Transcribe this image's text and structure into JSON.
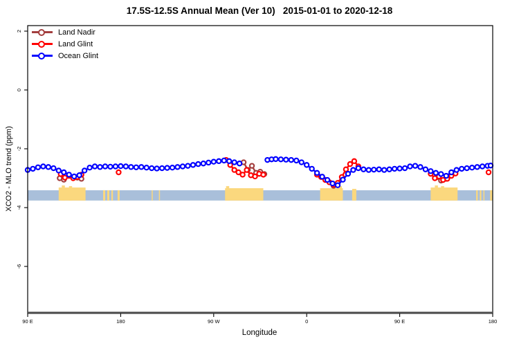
{
  "title": "17.5S-12.5S Annual Mean (Ver 10)   2015-01-01 to 2020-12-18",
  "colors": {
    "land_nadir": "#A33E3E",
    "land_glint": "#FF0000",
    "ocean_glint": "#0000FF",
    "ocean_band": "#A9BFDA",
    "land_band": "#FBD87E",
    "axis_heavy_line": "#4D4D4D",
    "frame": "#000000"
  },
  "legend": {
    "items": [
      {
        "label": "Land Nadir",
        "color_key": "land_nadir"
      },
      {
        "label": "Land Glint",
        "color_key": "land_glint"
      },
      {
        "label": "Ocean Glint",
        "color_key": "ocean_glint"
      }
    ]
  },
  "axes": {
    "xlabel": "Longitude",
    "ylabel": "XCO2 - MLO trend (ppm)",
    "x_ticks": [
      {
        "lon": 90,
        "label": "90 E"
      },
      {
        "lon": 180,
        "label": "180"
      },
      {
        "lon": 270,
        "label": "90 W"
      },
      {
        "lon": 360,
        "label": "0"
      },
      {
        "lon": 450,
        "label": "90 E"
      },
      {
        "lon": 540,
        "label": "180"
      }
    ],
    "y_ticks": [
      {
        "v": 2,
        "label": "2"
      },
      {
        "v": 0,
        "label": "0"
      },
      {
        "v": -2,
        "label": "-2"
      },
      {
        "v": -4,
        "label": "-4"
      },
      {
        "v": -6,
        "label": "-6"
      }
    ]
  },
  "chart_data": {
    "type": "line",
    "title": "17.5S-12.5S Annual Mean (Ver 10)   2015-01-01 to 2020-12-18",
    "xlabel": "Longitude",
    "ylabel": "XCO2 - MLO trend (ppm)",
    "x_axis_note": "extended longitude degrees, 90E wrapping east to 180 (90..540)",
    "xlim": [
      90,
      540
    ],
    "ylim": [
      -7.6,
      2.2
    ],
    "grid": false,
    "legend_position": "top-left-inside",
    "series": [
      {
        "name": "Land Nadir",
        "color_key": "land_nadir",
        "marker": "open-circle",
        "segments": [
          [
            [
              121,
              -3.0
            ],
            [
              125,
              -3.05
            ]
          ],
          [
            [
              138,
              -2.98
            ],
            [
              142,
              -3.02
            ]
          ],
          [
            [
              299,
              -2.46
            ],
            [
              303,
              -2.72
            ],
            [
              307,
              -2.58
            ],
            [
              311,
              -2.82
            ],
            [
              315,
              -2.78
            ],
            [
              319,
              -2.86
            ]
          ],
          [
            [
              386,
              -3.26
            ]
          ],
          [
            [
              485,
              -2.98
            ],
            [
              490,
              -3.08
            ],
            [
              495,
              -3.02
            ]
          ]
        ]
      },
      {
        "name": "Land Glint",
        "color_key": "land_glint",
        "marker": "open-circle",
        "segments": [
          [
            [
              122,
              -2.86
            ],
            [
              126,
              -2.98
            ],
            [
              130,
              -2.92
            ],
            [
              134,
              -3.0
            ],
            [
              138,
              -2.96
            ],
            [
              142,
              -2.88
            ]
          ],
          [
            [
              178,
              -2.8
            ]
          ],
          [
            [
              282,
              -2.38
            ],
            [
              286,
              -2.55
            ],
            [
              290,
              -2.72
            ]
          ],
          [
            [
              294,
              -2.8
            ],
            [
              298,
              -2.88
            ],
            [
              302,
              -2.72
            ],
            [
              306,
              -2.9
            ],
            [
              310,
              -2.94
            ],
            [
              314,
              -2.85
            ],
            [
              318,
              -2.88
            ]
          ],
          [
            [
              370,
              -2.88
            ],
            [
              374,
              -2.96
            ],
            [
              378,
              -3.06
            ],
            [
              382,
              -3.14
            ],
            [
              386,
              -3.22
            ],
            [
              390,
              -3.16
            ],
            [
              394,
              -2.96
            ],
            [
              398,
              -2.7
            ],
            [
              402,
              -2.52
            ],
            [
              406,
              -2.42
            ],
            [
              410,
              -2.6
            ]
          ],
          [
            [
              480,
              -2.85
            ],
            [
              484,
              -3.0
            ],
            [
              488,
              -2.94
            ],
            [
              492,
              -3.06
            ],
            [
              496,
              -3.02
            ],
            [
              500,
              -2.92
            ],
            [
              504,
              -2.84
            ]
          ],
          [
            [
              536,
              -2.8
            ]
          ]
        ]
      },
      {
        "name": "Ocean Glint",
        "color_key": "ocean_glint",
        "marker": "open-circle",
        "segments": [
          [
            [
              90,
              -2.72
            ],
            [
              95,
              -2.68
            ],
            [
              100,
              -2.63
            ],
            [
              105,
              -2.6
            ],
            [
              110,
              -2.62
            ],
            [
              115,
              -2.66
            ],
            [
              120,
              -2.74
            ],
            [
              125,
              -2.8
            ],
            [
              130,
              -2.88
            ],
            [
              135,
              -2.94
            ],
            [
              140,
              -2.9
            ],
            [
              145,
              -2.74
            ],
            [
              150,
              -2.64
            ],
            [
              155,
              -2.6
            ],
            [
              160,
              -2.62
            ],
            [
              165,
              -2.6
            ],
            [
              170,
              -2.61
            ],
            [
              175,
              -2.6
            ],
            [
              180,
              -2.59
            ],
            [
              185,
              -2.6
            ],
            [
              190,
              -2.62
            ],
            [
              195,
              -2.63
            ],
            [
              200,
              -2.62
            ],
            [
              205,
              -2.64
            ],
            [
              210,
              -2.66
            ],
            [
              215,
              -2.67
            ],
            [
              220,
              -2.66
            ],
            [
              225,
              -2.65
            ],
            [
              230,
              -2.64
            ],
            [
              235,
              -2.62
            ],
            [
              240,
              -2.6
            ],
            [
              245,
              -2.58
            ],
            [
              250,
              -2.55
            ],
            [
              255,
              -2.52
            ],
            [
              260,
              -2.5
            ],
            [
              265,
              -2.47
            ],
            [
              270,
              -2.44
            ],
            [
              275,
              -2.42
            ],
            [
              280,
              -2.4
            ],
            [
              285,
              -2.42
            ],
            [
              290,
              -2.46
            ],
            [
              295,
              -2.5
            ]
          ],
          [
            [
              322,
              -2.38
            ],
            [
              326,
              -2.36
            ],
            [
              330,
              -2.35
            ],
            [
              335,
              -2.36
            ],
            [
              340,
              -2.37
            ],
            [
              345,
              -2.38
            ],
            [
              350,
              -2.4
            ],
            [
              355,
              -2.46
            ],
            [
              360,
              -2.55
            ],
            [
              365,
              -2.68
            ],
            [
              370,
              -2.82
            ],
            [
              375,
              -2.95
            ],
            [
              380,
              -3.06
            ],
            [
              385,
              -3.18
            ],
            [
              390,
              -3.24
            ],
            [
              395,
              -3.05
            ],
            [
              400,
              -2.85
            ],
            [
              405,
              -2.72
            ],
            [
              410,
              -2.66
            ],
            [
              415,
              -2.7
            ],
            [
              420,
              -2.72
            ],
            [
              425,
              -2.71
            ],
            [
              430,
              -2.7
            ],
            [
              435,
              -2.72
            ],
            [
              440,
              -2.7
            ],
            [
              445,
              -2.68
            ],
            [
              450,
              -2.67
            ],
            [
              455,
              -2.66
            ],
            [
              460,
              -2.6
            ],
            [
              465,
              -2.58
            ],
            [
              470,
              -2.62
            ],
            [
              475,
              -2.7
            ],
            [
              480,
              -2.76
            ],
            [
              485,
              -2.82
            ],
            [
              490,
              -2.86
            ],
            [
              495,
              -2.92
            ],
            [
              500,
              -2.8
            ],
            [
              505,
              -2.72
            ],
            [
              510,
              -2.68
            ],
            [
              515,
              -2.66
            ],
            [
              520,
              -2.64
            ],
            [
              525,
              -2.62
            ],
            [
              530,
              -2.6
            ],
            [
              535,
              -2.58
            ],
            [
              538,
              -2.57
            ]
          ]
        ]
      }
    ],
    "surface_band": {
      "description": "land/ocean surface strip along longitude",
      "v_top": -3.41,
      "v_bottom": -3.76,
      "ocean_color_key": "ocean_band",
      "land_color_key": "land_band",
      "land_segments": [
        {
          "s": 120,
          "e": 146,
          "rise": 4
        },
        {
          "s": 123,
          "e": 126,
          "rise": 7
        },
        {
          "s": 130,
          "e": 133,
          "rise": 6
        },
        {
          "s": 163,
          "e": 165,
          "rise": 0
        },
        {
          "s": 167,
          "e": 169,
          "rise": 0
        },
        {
          "s": 171,
          "e": 172.5,
          "rise": 0
        },
        {
          "s": 177,
          "e": 179,
          "rise": 0
        },
        {
          "s": 210,
          "e": 211,
          "rise": 0
        },
        {
          "s": 217,
          "e": 218,
          "rise": 0
        },
        {
          "s": 281,
          "e": 318,
          "rise": 3
        },
        {
          "s": 282,
          "e": 285,
          "rise": 6
        },
        {
          "s": 373,
          "e": 395,
          "rise": 3
        },
        {
          "s": 391,
          "e": 394,
          "rise": 6
        },
        {
          "s": 404,
          "e": 408,
          "rise": 2
        },
        {
          "s": 480,
          "e": 506,
          "rise": 4
        },
        {
          "s": 484,
          "e": 487,
          "rise": 7
        },
        {
          "s": 490,
          "e": 493,
          "rise": 6
        },
        {
          "s": 524,
          "e": 525.5,
          "rise": 0
        },
        {
          "s": 527.5,
          "e": 529,
          "rise": 0
        },
        {
          "s": 531,
          "e": 532,
          "rise": 0
        },
        {
          "s": 537.5,
          "e": 539.5,
          "rise": 0
        }
      ]
    }
  }
}
